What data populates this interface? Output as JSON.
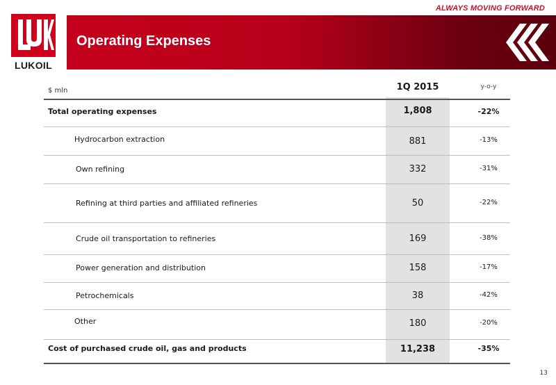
{
  "header": {
    "tagline": "ALWAYS MOVING FORWARD",
    "title": "Operating Expenses",
    "logo_text": "LUKOIL"
  },
  "table": {
    "unit_label": "$ mln",
    "period": "1Q 2015",
    "change_label": "y-o-y",
    "rows": [
      {
        "label": "Total operating expenses",
        "value": "1,808",
        "change": "-22%",
        "bold": true
      },
      {
        "label": "Hydrocarbon extraction",
        "value": "881",
        "change": "-13%",
        "bold": false
      },
      {
        "label": "Own refining",
        "value": "332",
        "change": "-31%",
        "bold": false
      },
      {
        "label": "Refining at third parties and affiliated refineries",
        "value": "50",
        "change": "-22%",
        "bold": false
      },
      {
        "label": "Crude oil transportation to refineries",
        "value": "169",
        "change": "-38%",
        "bold": false
      },
      {
        "label": "Power generation and distribution",
        "value": "158",
        "change": "-17%",
        "bold": false
      },
      {
        "label": "Petrochemicals",
        "value": "38",
        "change": "-42%",
        "bold": false
      },
      {
        "label": "Other",
        "value": "180",
        "change": "-20%",
        "bold": false
      },
      {
        "label": "Cost of purchased crude oil, gas and products",
        "value": "11,238",
        "change": "-35%",
        "bold": true
      }
    ]
  },
  "page_number": "13",
  "colors": {
    "brand_red": "#d0021b",
    "column_highlight": "#e2e2e2"
  }
}
